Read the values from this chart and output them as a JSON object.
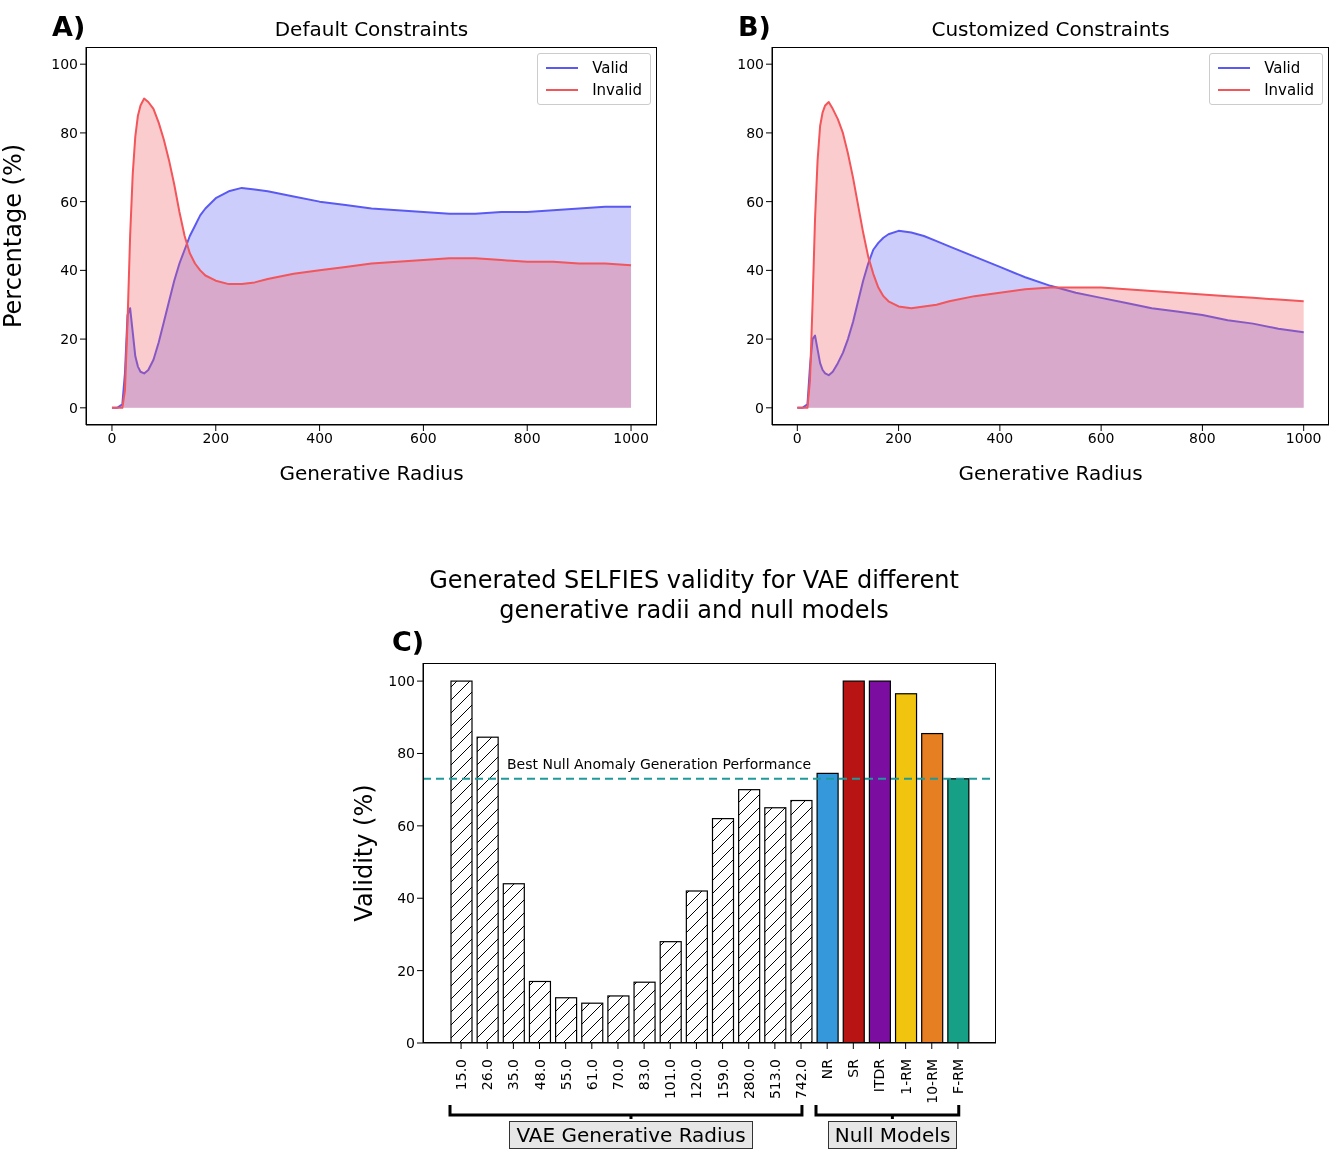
{
  "chart_data": [
    {
      "type": "area",
      "title": "Default Constraints",
      "xlabel": "Generative Radius",
      "ylabel": "Percentage (%)",
      "annotations": [
        "A)"
      ],
      "legend": "top right",
      "x": [
        0,
        10,
        20,
        25,
        30,
        35,
        40,
        45,
        50,
        55,
        62,
        70,
        80,
        90,
        100,
        110,
        120,
        130,
        140,
        150,
        160,
        170,
        180,
        200,
        225,
        250,
        275,
        300,
        350,
        400,
        450,
        500,
        550,
        600,
        650,
        700,
        750,
        800,
        850,
        900,
        950,
        1000
      ],
      "series": [
        {
          "name": "Valid",
          "color": "#5a5af2",
          "values": [
            0,
            0,
            1,
            10,
            27,
            29,
            22,
            15,
            12,
            10.5,
            10,
            11,
            14,
            19,
            25,
            31,
            37,
            42,
            46,
            50,
            53,
            56,
            58,
            61,
            63,
            64,
            63.5,
            63,
            61.5,
            60,
            59,
            58,
            57.5,
            57,
            56.5,
            56.5,
            57,
            57,
            57.5,
            58,
            58.5,
            58.5
          ]
        },
        {
          "name": "Invalid",
          "color": "#f2555a",
          "values": [
            0,
            0,
            0,
            5,
            25,
            50,
            68,
            79,
            85,
            88,
            90,
            89,
            87,
            83,
            78,
            72,
            65,
            57,
            50,
            45,
            42,
            40,
            38.5,
            37,
            36,
            36,
            36.5,
            37.5,
            39,
            40,
            41,
            42,
            42.5,
            43,
            43.5,
            43.5,
            43,
            42.5,
            42.5,
            42,
            42,
            41.5
          ]
        }
      ],
      "xlim": [
        -50,
        1050
      ],
      "ylim": [
        -5,
        105
      ],
      "xticks": [
        0,
        200,
        400,
        600,
        800,
        1000
      ],
      "yticks": [
        0,
        20,
        40,
        60,
        80,
        100
      ]
    },
    {
      "type": "area",
      "title": "Customized Constraints",
      "xlabel": "Generative Radius",
      "annotations": [
        "B)"
      ],
      "legend": "top right",
      "x": [
        0,
        10,
        20,
        25,
        30,
        35,
        40,
        45,
        50,
        55,
        62,
        70,
        80,
        90,
        100,
        110,
        120,
        130,
        140,
        150,
        160,
        170,
        180,
        200,
        225,
        250,
        275,
        300,
        350,
        400,
        450,
        500,
        550,
        600,
        650,
        700,
        750,
        800,
        850,
        900,
        950,
        1000
      ],
      "series": [
        {
          "name": "Valid",
          "color": "#5a5af2",
          "values": [
            0,
            0,
            1,
            12,
            20,
            21,
            17,
            13,
            11,
            10,
            9.5,
            10.5,
            13,
            16,
            20,
            25,
            31,
            37,
            42,
            46,
            48,
            49.5,
            50.5,
            51.5,
            51,
            50,
            48.5,
            47,
            44,
            41,
            38,
            35.5,
            33.5,
            32,
            30.5,
            29,
            28,
            27,
            25.5,
            24.5,
            23,
            22
          ]
        },
        {
          "name": "Invalid",
          "color": "#f2555a",
          "values": [
            0,
            0,
            0,
            8,
            30,
            55,
            72,
            82,
            86,
            88,
            89,
            87,
            84,
            80,
            74,
            67,
            59,
            51,
            44,
            39,
            35,
            32.5,
            31,
            29.5,
            29,
            29.5,
            30,
            31,
            32.5,
            33.5,
            34.5,
            35,
            35,
            35,
            34.5,
            34,
            33.5,
            33,
            32.5,
            32,
            31.5,
            31
          ]
        }
      ],
      "xlim": [
        -50,
        1050
      ],
      "ylim": [
        -5,
        105
      ],
      "xticks": [
        0,
        200,
        400,
        600,
        800,
        1000
      ],
      "yticks": [
        0,
        20,
        40,
        60,
        80,
        100
      ]
    },
    {
      "type": "bar",
      "title": "Generated SELFIES validity for VAE different generative radii and null models",
      "ylabel": "Validity (%)",
      "annotations": [
        "C)",
        "VAE Generative Radius",
        "Null Models"
      ],
      "categories": [
        "15.0",
        "26.0",
        "35.0",
        "48.0",
        "55.0",
        "61.0",
        "70.0",
        "83.0",
        "101.0",
        "120.0",
        "159.0",
        "280.0",
        "513.0",
        "742.0",
        "NR",
        "SR",
        "ITDR",
        "1-RM",
        "10-RM",
        "F-RM"
      ],
      "values": [
        100,
        84.5,
        44,
        17,
        12.5,
        11,
        13,
        16.8,
        28,
        42,
        62,
        70,
        65,
        67,
        74.5,
        100,
        100,
        96.5,
        85.5,
        73
      ],
      "colors": [
        "#ffffff",
        "#ffffff",
        "#ffffff",
        "#ffffff",
        "#ffffff",
        "#ffffff",
        "#ffffff",
        "#ffffff",
        "#ffffff",
        "#ffffff",
        "#ffffff",
        "#ffffff",
        "#ffffff",
        "#ffffff",
        "#3498db",
        "#b81414",
        "#7b0ea0",
        "#f1c40f",
        "#e67e22",
        "#16a085"
      ],
      "ylim": [
        0,
        105
      ],
      "yticks": [
        0,
        20,
        40,
        60,
        80,
        100
      ],
      "ref_lines": [
        {
          "axis": "y",
          "value": 73,
          "label": "Best Null Anomaly Generation Performance",
          "color": "#1f9a9a",
          "line_style": "dashed"
        }
      ]
    }
  ]
}
